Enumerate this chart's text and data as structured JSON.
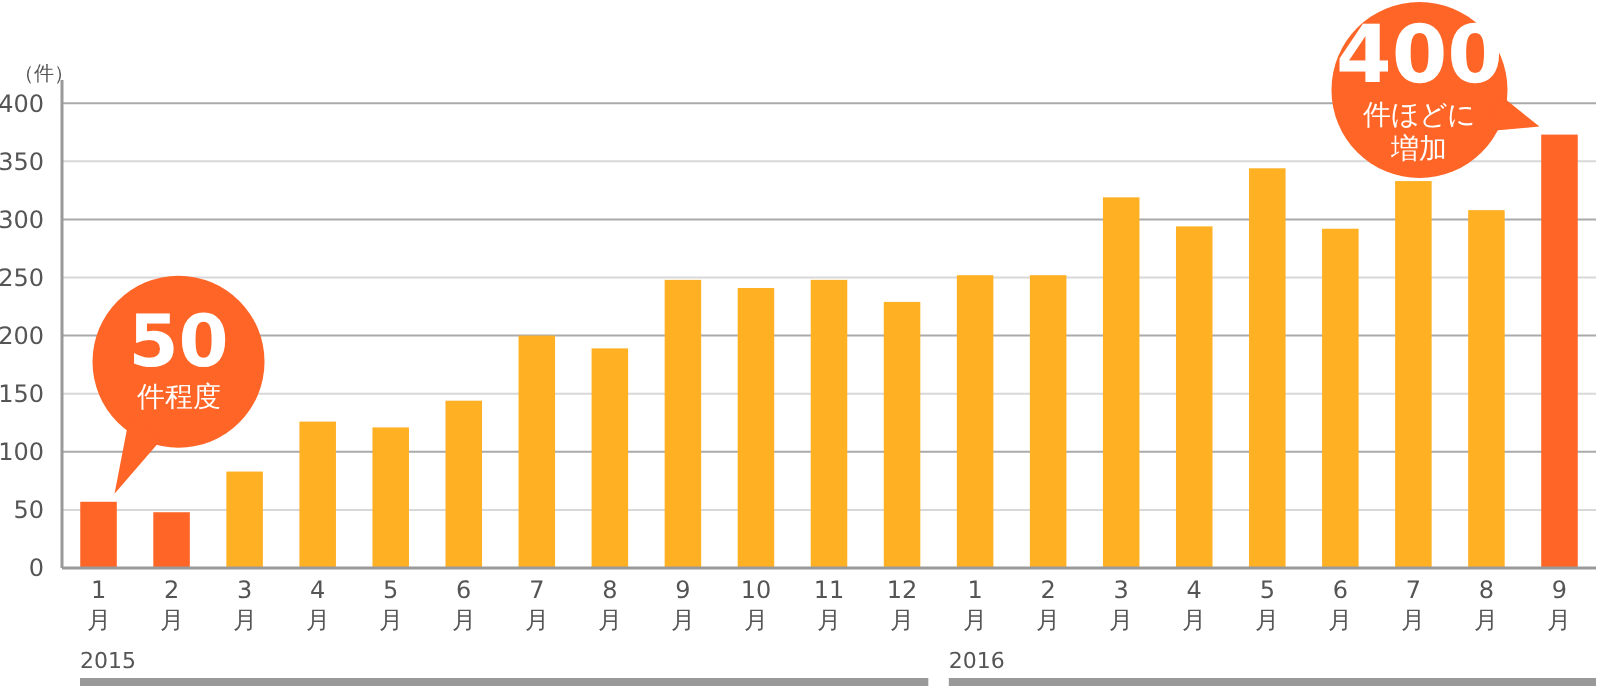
{
  "chart_data": {
    "type": "bar",
    "ylabel": "（件）",
    "categories": [
      "1月",
      "2月",
      "3月",
      "4月",
      "5月",
      "6月",
      "7月",
      "8月",
      "9月",
      "10月",
      "11月",
      "12月",
      "1月",
      "2月",
      "3月",
      "4月",
      "5月",
      "6月",
      "7月",
      "8月",
      "9月"
    ],
    "values": [
      57,
      48,
      83,
      126,
      121,
      144,
      200,
      189,
      248,
      241,
      248,
      229,
      252,
      252,
      319,
      294,
      344,
      292,
      333,
      308,
      373
    ],
    "colors": [
      "#ff6526",
      "#ff6526",
      "#ffb023",
      "#ffb023",
      "#ffb023",
      "#ffb023",
      "#ffb023",
      "#ffb023",
      "#ffb023",
      "#ffb023",
      "#ffb023",
      "#ffb023",
      "#ffb023",
      "#ffb023",
      "#ffb023",
      "#ffb023",
      "#ffb023",
      "#ffb023",
      "#ffb023",
      "#ffb023",
      "#ff6526"
    ],
    "ylim": [
      0,
      420
    ],
    "yticks": [
      0,
      50,
      100,
      150,
      200,
      250,
      300,
      350,
      400
    ],
    "grid": "y",
    "annotations": [
      "50件程度",
      "400件ほどに増加",
      "2015",
      "2016"
    ]
  }
}
